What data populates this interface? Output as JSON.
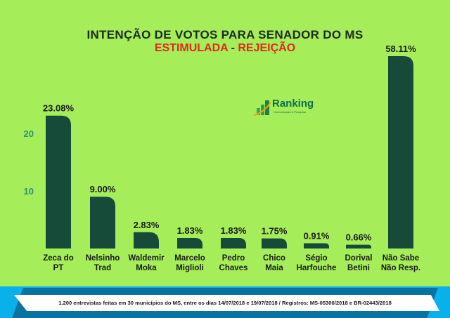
{
  "chart_data": {
    "type": "bar",
    "title": "INTENÇÃO DE VOTOS PARA SENADOR DO MS",
    "subtitle_left": "ESTIMULADA",
    "subtitle_sep": "-",
    "subtitle_right": "REJEIÇÃO",
    "categories": [
      [
        "Zeca do",
        "PT"
      ],
      [
        "Nelsinho",
        "Trad"
      ],
      [
        "Waldemir",
        "Moka"
      ],
      [
        "Marcelo",
        "Miglioli"
      ],
      [
        "Pedro",
        "Chaves"
      ],
      [
        "Chico",
        "Maia"
      ],
      [
        "Ségio",
        "Harfouche"
      ],
      [
        "Dorival",
        "Betini"
      ],
      [
        "Não Sabe",
        "Não Resp."
      ]
    ],
    "values": [
      23.08,
      9.0,
      2.83,
      1.83,
      1.83,
      1.75,
      0.91,
      0.66,
      58.11
    ],
    "data_labels": [
      "23.08%",
      "9.00%",
      "2.83%",
      "1.83%",
      "1.83%",
      "1.75%",
      "0.91%",
      "0.66%",
      "58.11%"
    ],
    "yticks": [
      10,
      20
    ],
    "ytick_labels": [
      "10",
      "20"
    ],
    "bar_color": "#174b39"
  },
  "logo": {
    "name": "Ranking",
    "tagline": "Comunicação & Pesquisa"
  },
  "footer": "1.200 entrevistas feitas em 30 municípios do MS, entre os dias 14/07/2018 e 19/07/2018 / Registros: MS-05306/2018 e BR-02443/2018"
}
